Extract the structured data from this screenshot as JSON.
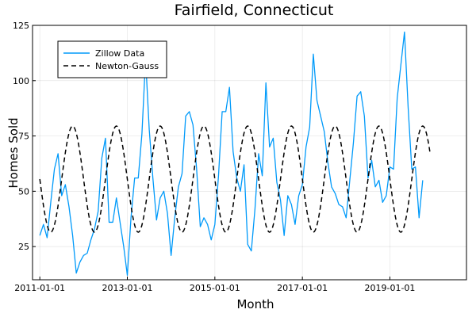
{
  "chart_data": {
    "type": "line",
    "title": "Fairfield, Connecticut",
    "xlabel": "Month",
    "ylabel": "Homes Sold",
    "grid": true,
    "legend_position": "top-left",
    "xlim": [
      "2010-11-01",
      "2020-10-01"
    ],
    "ylim": [
      10,
      125
    ],
    "x_ticks": [
      {
        "date": "2011-01-01",
        "label": "2011-01-01"
      },
      {
        "date": "2013-01-01",
        "label": "2013-01-01"
      },
      {
        "date": "2015-01-01",
        "label": "2015-01-01"
      },
      {
        "date": "2017-01-01",
        "label": "2017-01-01"
      },
      {
        "date": "2019-01-01",
        "label": "2019-01-01"
      }
    ],
    "y_ticks": [
      {
        "value": 25,
        "label": "25"
      },
      {
        "value": 50,
        "label": "50"
      },
      {
        "value": 75,
        "label": "75"
      },
      {
        "value": 100,
        "label": "100"
      },
      {
        "value": 125,
        "label": "125"
      }
    ],
    "start_month": "2011-01",
    "series": [
      {
        "name": "Zillow Data",
        "color": "#009AFA",
        "dash": "solid",
        "values": [
          30,
          35,
          29,
          45,
          60,
          67,
          48,
          53,
          43,
          30,
          13,
          18,
          21,
          22,
          28,
          33,
          41,
          65,
          74,
          36,
          36,
          47,
          36,
          25,
          12,
          38,
          56,
          56,
          76,
          110,
          78,
          56,
          37,
          47,
          50,
          40,
          21,
          38,
          52,
          58,
          84,
          86,
          80,
          60,
          34,
          38,
          35,
          28,
          35,
          57,
          86,
          86,
          97,
          68,
          56,
          50,
          62,
          26,
          23,
          42,
          67,
          57,
          99,
          70,
          74,
          54,
          46,
          30,
          48,
          44,
          35,
          48,
          53,
          70,
          79,
          112,
          91,
          84,
          77,
          63,
          52,
          49,
          44,
          43,
          38,
          55,
          72,
          93,
          95,
          84,
          56,
          64,
          52,
          55,
          45,
          48,
          61,
          60,
          92,
          107,
          122,
          88,
          60,
          61,
          38,
          55
        ]
      },
      {
        "name": "Newton-Gauss",
        "color": "#000000",
        "dash": "dashed",
        "amplitude": 24,
        "offset": 55.5,
        "period_months": 12,
        "phase_month": 3,
        "n": 108
      }
    ]
  }
}
